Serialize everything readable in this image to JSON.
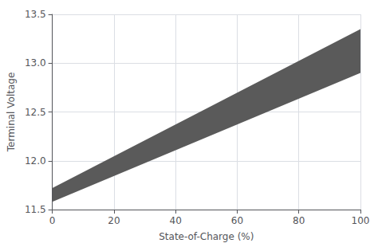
{
  "chart_data": {
    "type": "band",
    "xlabel": "State-of-Charge (%)",
    "ylabel": "Terminal Voltage",
    "x": [
      0,
      100
    ],
    "upper": [
      11.72,
      13.35
    ],
    "lower": [
      11.58,
      12.9
    ],
    "color": "#5a5a5a",
    "xlim": [
      0,
      100
    ],
    "ylim": [
      11.5,
      13.5
    ],
    "xticks": [
      0,
      20,
      40,
      60,
      80,
      100
    ],
    "yticks": [
      {
        "value": 11.5,
        "label": "11.5"
      },
      {
        "value": 12.0,
        "label": "12.0"
      },
      {
        "value": 12.5,
        "label": "12.5"
      },
      {
        "value": 13.0,
        "label": "13.0"
      },
      {
        "value": 13.5,
        "label": "13.5"
      }
    ],
    "grid": true
  }
}
